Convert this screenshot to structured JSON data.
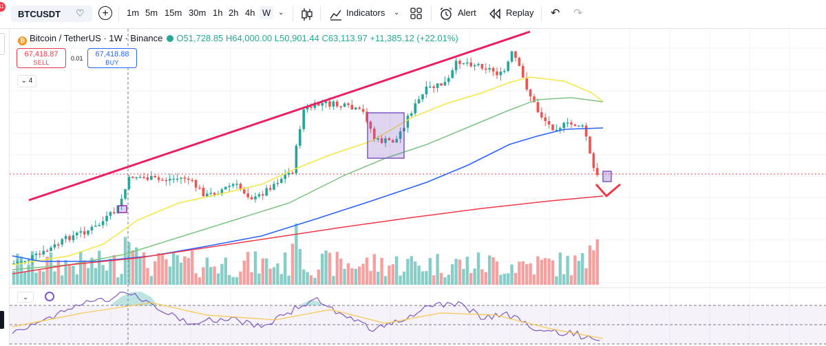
{
  "toolbar": {
    "notification_count": "11",
    "symbol": "BTCUSDT",
    "timeframes": [
      "1m",
      "5m",
      "15m",
      "30m",
      "1h",
      "2h",
      "4h",
      "W"
    ],
    "active_timeframe": "W",
    "indicators_label": "Indicators",
    "alert_label": "Alert",
    "replay_label": "Replay"
  },
  "legend": {
    "title": "Bitcoin / TetherUS · 1W · Binance",
    "ohlc": "O51,728.85 H64,000.00 L50,901.44 C63,113.97 +11,385.12 (+22.01%)"
  },
  "trade": {
    "sell_price": "67,418.87",
    "sell_label": "SELL",
    "spread": "0.01",
    "buy_price": "67,418.88",
    "buy_label": "BUY",
    "indicator_count": "4"
  },
  "colors": {
    "up": "#26a69a",
    "down": "#ef5350",
    "trendline": "#e91e63",
    "ma_yellow": "#f5e642",
    "ma_green": "#7cc47f",
    "ma_blue": "#2962ff",
    "ma_red": "#f23645",
    "rsi": "#7e57c2"
  }
}
